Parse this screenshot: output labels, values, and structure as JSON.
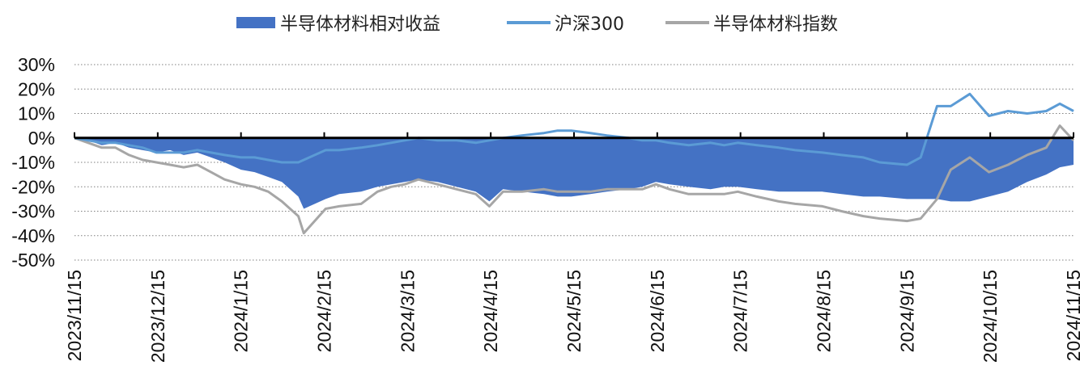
{
  "chart_data": {
    "type": "area+line",
    "title": "",
    "xlabel": "",
    "ylabel": "",
    "ylim": [
      -50,
      30
    ],
    "yticks": [
      30,
      20,
      10,
      0,
      -10,
      -20,
      -30,
      -40,
      -50
    ],
    "ytick_labels": [
      "30%",
      "20%",
      "10%",
      "0%",
      "-10%",
      "-20%",
      "-30%",
      "-40%",
      "-50%"
    ],
    "xlim": [
      "2023/11/15",
      "2024/11/15"
    ],
    "xtick_labels": [
      "2023/11/15",
      "2023/12/15",
      "2024/1/15",
      "2024/2/15",
      "2024/3/15",
      "2024/4/15",
      "2024/5/15",
      "2024/6/15",
      "2024/7/15",
      "2024/8/15",
      "2024/9/15",
      "2024/10/15",
      "2024/11/15"
    ],
    "grid": "horizontal-dotted",
    "legend_position": "top-center",
    "colors": {
      "relative": "#4472c4",
      "hs300": "#5b9bd5",
      "index": "#a6a6a6",
      "zero_line": "#000000"
    },
    "series": [
      {
        "name": "半导体材料相对收益",
        "kind": "area",
        "x": [
          "2023/11/15",
          "2023/11/20",
          "2023/11/25",
          "2023/11/30",
          "2023/12/5",
          "2023/12/10",
          "2023/12/15",
          "2023/12/20",
          "2023/12/25",
          "2023/12/30",
          "2024/1/4",
          "2024/1/9",
          "2024/1/15",
          "2024/1/20",
          "2024/1/25",
          "2024/1/30",
          "2024/2/5",
          "2024/2/7",
          "2024/2/15",
          "2024/2/20",
          "2024/2/28",
          "2024/3/5",
          "2024/3/10",
          "2024/3/15",
          "2024/3/20",
          "2024/3/27",
          "2024/4/3",
          "2024/4/10",
          "2024/4/15",
          "2024/4/20",
          "2024/4/27",
          "2024/5/5",
          "2024/5/10",
          "2024/5/15",
          "2024/5/22",
          "2024/5/28",
          "2024/6/5",
          "2024/6/10",
          "2024/6/15",
          "2024/6/20",
          "2024/6/27",
          "2024/7/5",
          "2024/7/10",
          "2024/7/15",
          "2024/7/22",
          "2024/7/30",
          "2024/8/5",
          "2024/8/15",
          "2024/8/22",
          "2024/8/30",
          "2024/9/5",
          "2024/9/15",
          "2024/9/20",
          "2024/9/26",
          "2024/10/1",
          "2024/10/8",
          "2024/10/15",
          "2024/10/22",
          "2024/10/29",
          "2024/11/5",
          "2024/11/10",
          "2024/11/15"
        ],
        "values": [
          0,
          -1,
          -3,
          -2,
          -4,
          -5,
          -6,
          -5,
          -7,
          -6,
          -8,
          -10,
          -13,
          -14,
          -16,
          -18,
          -24,
          -29,
          -25,
          -23,
          -22,
          -20,
          -19,
          -18,
          -17,
          -18,
          -20,
          -22,
          -26,
          -21,
          -22,
          -23,
          -24,
          -24,
          -23,
          -22,
          -21,
          -20,
          -18,
          -19,
          -20,
          -21,
          -20,
          -20,
          -21,
          -22,
          -22,
          -22,
          -23,
          -24,
          -24,
          -25,
          -25,
          -25,
          -26,
          -26,
          -24,
          -22,
          -18,
          -15,
          -12,
          -11
        ]
      },
      {
        "name": "沪深300",
        "kind": "line",
        "x": [
          "2023/11/15",
          "2023/11/20",
          "2023/11/25",
          "2023/11/30",
          "2023/12/5",
          "2023/12/10",
          "2023/12/15",
          "2023/12/20",
          "2023/12/25",
          "2023/12/30",
          "2024/1/4",
          "2024/1/9",
          "2024/1/15",
          "2024/1/20",
          "2024/1/25",
          "2024/1/30",
          "2024/2/5",
          "2024/2/7",
          "2024/2/15",
          "2024/2/20",
          "2024/2/28",
          "2024/3/5",
          "2024/3/10",
          "2024/3/15",
          "2024/3/20",
          "2024/3/27",
          "2024/4/3",
          "2024/4/10",
          "2024/4/15",
          "2024/4/20",
          "2024/4/27",
          "2024/5/5",
          "2024/5/10",
          "2024/5/15",
          "2024/5/22",
          "2024/5/28",
          "2024/6/5",
          "2024/6/10",
          "2024/6/15",
          "2024/6/20",
          "2024/6/27",
          "2024/7/5",
          "2024/7/10",
          "2024/7/15",
          "2024/7/22",
          "2024/7/30",
          "2024/8/5",
          "2024/8/15",
          "2024/8/22",
          "2024/8/30",
          "2024/9/5",
          "2024/9/15",
          "2024/9/20",
          "2024/9/26",
          "2024/10/1",
          "2024/10/8",
          "2024/10/15",
          "2024/10/22",
          "2024/10/29",
          "2024/11/5",
          "2024/11/10",
          "2024/11/15"
        ],
        "values": [
          0,
          -1,
          -2,
          -2,
          -3,
          -4,
          -6,
          -6,
          -6,
          -5,
          -6,
          -7,
          -8,
          -8,
          -9,
          -10,
          -10,
          -9,
          -5,
          -5,
          -4,
          -3,
          -2,
          -1,
          0,
          -1,
          -1,
          -2,
          -1,
          0,
          1,
          2,
          3,
          3,
          2,
          1,
          0,
          -1,
          -1,
          -2,
          -3,
          -2,
          -3,
          -2,
          -3,
          -4,
          -5,
          -6,
          -7,
          -8,
          -10,
          -11,
          -8,
          13,
          13,
          18,
          9,
          11,
          10,
          11,
          14,
          11
        ]
      },
      {
        "name": "半导体材料指数",
        "kind": "line",
        "x": [
          "2023/11/15",
          "2023/11/20",
          "2023/11/25",
          "2023/11/30",
          "2023/12/5",
          "2023/12/10",
          "2023/12/15",
          "2023/12/20",
          "2023/12/25",
          "2023/12/30",
          "2024/1/4",
          "2024/1/9",
          "2024/1/15",
          "2024/1/20",
          "2024/1/25",
          "2024/1/30",
          "2024/2/5",
          "2024/2/7",
          "2024/2/15",
          "2024/2/20",
          "2024/2/28",
          "2024/3/5",
          "2024/3/10",
          "2024/3/15",
          "2024/3/20",
          "2024/3/27",
          "2024/4/3",
          "2024/4/10",
          "2024/4/15",
          "2024/4/20",
          "2024/4/27",
          "2024/5/5",
          "2024/5/10",
          "2024/5/15",
          "2024/5/22",
          "2024/5/28",
          "2024/6/5",
          "2024/6/10",
          "2024/6/15",
          "2024/6/20",
          "2024/6/27",
          "2024/7/5",
          "2024/7/10",
          "2024/7/15",
          "2024/7/22",
          "2024/7/30",
          "2024/8/5",
          "2024/8/15",
          "2024/8/22",
          "2024/8/30",
          "2024/9/5",
          "2024/9/15",
          "2024/9/20",
          "2024/9/26",
          "2024/10/1",
          "2024/10/8",
          "2024/10/15",
          "2024/10/22",
          "2024/10/29",
          "2024/11/5",
          "2024/11/10",
          "2024/11/15"
        ],
        "values": [
          0,
          -2,
          -4,
          -4,
          -7,
          -9,
          -10,
          -11,
          -12,
          -11,
          -14,
          -17,
          -19,
          -20,
          -22,
          -26,
          -32,
          -39,
          -29,
          -28,
          -27,
          -22,
          -20,
          -19,
          -17,
          -19,
          -21,
          -23,
          -28,
          -22,
          -22,
          -21,
          -22,
          -22,
          -22,
          -21,
          -21,
          -21,
          -19,
          -21,
          -23,
          -23,
          -23,
          -22,
          -24,
          -26,
          -27,
          -28,
          -30,
          -32,
          -33,
          -34,
          -33,
          -25,
          -13,
          -8,
          -14,
          -11,
          -7,
          -4,
          5,
          -1
        ]
      }
    ]
  }
}
